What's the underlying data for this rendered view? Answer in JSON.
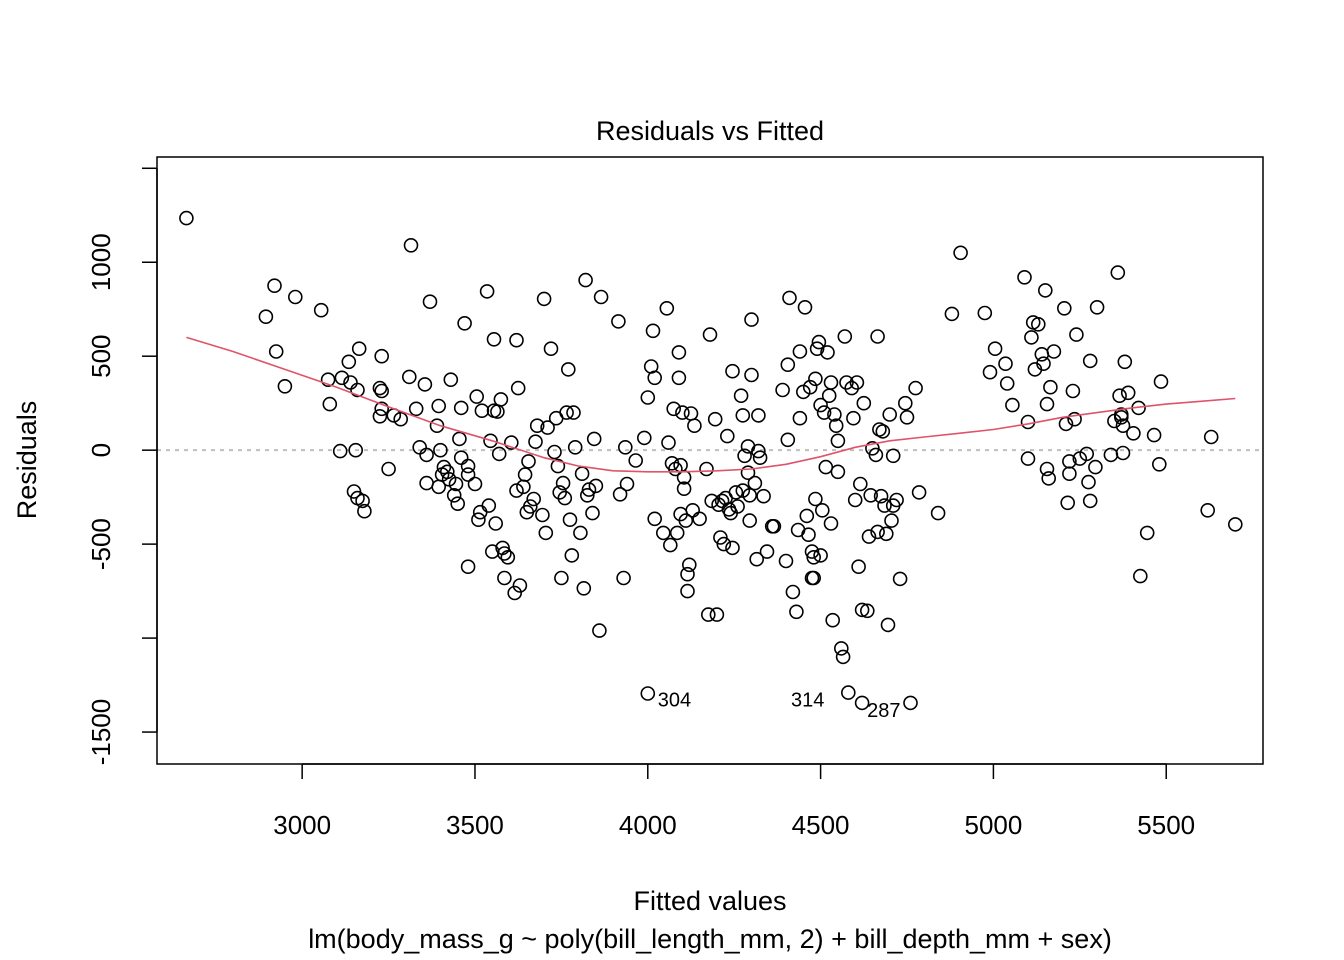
{
  "chart_data": {
    "type": "scatter",
    "title": "Residuals vs Fitted",
    "xlabel": "Fitted values",
    "subtitle": "lm(body_mass_g ~ poly(bill_length_mm, 2) + bill_depth_mm + sex)",
    "ylabel": "Residuals",
    "xlim": [
      2580,
      5780
    ],
    "ylim": [
      -1670,
      1560
    ],
    "x_ticks": [
      3000,
      3500,
      4000,
      4500,
      5000,
      5500
    ],
    "x_tick_labels": [
      "3000",
      "3500",
      "4000",
      "4500",
      "5000",
      "5500"
    ],
    "y_ticks": [
      -1500,
      -1000,
      -500,
      0,
      500,
      1000,
      1500
    ],
    "y_tick_labels": [
      "-1500",
      "",
      "-500",
      "0",
      "500",
      "1000",
      ""
    ],
    "reference_line": 0,
    "colors": {
      "points": "#000000",
      "smooth": "#DF536B",
      "reference": "#BEBEBE"
    },
    "points": [
      [
        2665,
        1235
      ],
      [
        2895,
        710
      ],
      [
        2920,
        875
      ],
      [
        2925,
        525
      ],
      [
        2950,
        340
      ],
      [
        2980,
        815
      ],
      [
        3055,
        745
      ],
      [
        3075,
        375
      ],
      [
        3080,
        245
      ],
      [
        3110,
        -5
      ],
      [
        3115,
        385
      ],
      [
        3135,
        470
      ],
      [
        3140,
        360
      ],
      [
        3150,
        -220
      ],
      [
        3155,
        0
      ],
      [
        3160,
        320
      ],
      [
        3160,
        -255
      ],
      [
        3165,
        540
      ],
      [
        3175,
        -270
      ],
      [
        3180,
        -325
      ],
      [
        3225,
        330
      ],
      [
        3225,
        180
      ],
      [
        3230,
        220
      ],
      [
        3230,
        500
      ],
      [
        3230,
        315
      ],
      [
        3250,
        -100
      ],
      [
        3265,
        185
      ],
      [
        3285,
        165
      ],
      [
        3310,
        390
      ],
      [
        3315,
        1090
      ],
      [
        3330,
        220
      ],
      [
        3340,
        15
      ],
      [
        3355,
        350
      ],
      [
        3360,
        -25
      ],
      [
        3360,
        -175
      ],
      [
        3370,
        790
      ],
      [
        3390,
        130
      ],
      [
        3395,
        235
      ],
      [
        3395,
        -195
      ],
      [
        3400,
        0
      ],
      [
        3405,
        -130
      ],
      [
        3410,
        -90
      ],
      [
        3420,
        -115
      ],
      [
        3425,
        -155
      ],
      [
        3430,
        375
      ],
      [
        3440,
        -240
      ],
      [
        3445,
        -180
      ],
      [
        3450,
        -285
      ],
      [
        3455,
        60
      ],
      [
        3460,
        225
      ],
      [
        3460,
        -40
      ],
      [
        3470,
        675
      ],
      [
        3480,
        -85
      ],
      [
        3480,
        -620
      ],
      [
        3480,
        -130
      ],
      [
        3500,
        -180
      ],
      [
        3505,
        285
      ],
      [
        3510,
        -370
      ],
      [
        3515,
        -330
      ],
      [
        3520,
        210
      ],
      [
        3535,
        845
      ],
      [
        3540,
        -295
      ],
      [
        3545,
        50
      ],
      [
        3550,
        -540
      ],
      [
        3555,
        590
      ],
      [
        3555,
        210
      ],
      [
        3560,
        -390
      ],
      [
        3565,
        205
      ],
      [
        3570,
        -20
      ],
      [
        3575,
        270
      ],
      [
        3580,
        -520
      ],
      [
        3585,
        -680
      ],
      [
        3585,
        -550
      ],
      [
        3595,
        -570
      ],
      [
        3605,
        40
      ],
      [
        3615,
        -760
      ],
      [
        3620,
        585
      ],
      [
        3620,
        -215
      ],
      [
        3625,
        330
      ],
      [
        3630,
        -720
      ],
      [
        3640,
        -195
      ],
      [
        3645,
        -130
      ],
      [
        3650,
        -330
      ],
      [
        3655,
        -60
      ],
      [
        3660,
        -300
      ],
      [
        3670,
        -260
      ],
      [
        3675,
        45
      ],
      [
        3680,
        130
      ],
      [
        3695,
        -345
      ],
      [
        3700,
        805
      ],
      [
        3705,
        -440
      ],
      [
        3710,
        120
      ],
      [
        3720,
        540
      ],
      [
        3730,
        -10
      ],
      [
        3735,
        170
      ],
      [
        3740,
        -85
      ],
      [
        3745,
        -225
      ],
      [
        3750,
        -680
      ],
      [
        3755,
        -175
      ],
      [
        3760,
        -255
      ],
      [
        3765,
        200
      ],
      [
        3770,
        430
      ],
      [
        3775,
        -370
      ],
      [
        3780,
        -560
      ],
      [
        3785,
        200
      ],
      [
        3790,
        15
      ],
      [
        3805,
        -440
      ],
      [
        3810,
        -125
      ],
      [
        3815,
        -735
      ],
      [
        3820,
        905
      ],
      [
        3825,
        -240
      ],
      [
        3830,
        -210
      ],
      [
        3840,
        -335
      ],
      [
        3845,
        60
      ],
      [
        3850,
        -190
      ],
      [
        3860,
        -960
      ],
      [
        3865,
        815
      ],
      [
        3915,
        685
      ],
      [
        3920,
        -235
      ],
      [
        3930,
        -680
      ],
      [
        3935,
        15
      ],
      [
        3940,
        -180
      ],
      [
        3965,
        -55
      ],
      [
        3990,
        65
      ],
      [
        4000,
        280
      ],
      [
        4000,
        -1295
      ],
      [
        4010,
        445
      ],
      [
        4015,
        635
      ],
      [
        4020,
        -365
      ],
      [
        4020,
        385
      ],
      [
        4045,
        -440
      ],
      [
        4055,
        755
      ],
      [
        4060,
        40
      ],
      [
        4065,
        -505
      ],
      [
        4070,
        -70
      ],
      [
        4075,
        220
      ],
      [
        4080,
        -100
      ],
      [
        4085,
        -440
      ],
      [
        4090,
        520
      ],
      [
        4090,
        385
      ],
      [
        4095,
        -340
      ],
      [
        4095,
        -80
      ],
      [
        4100,
        200
      ],
      [
        4105,
        -145
      ],
      [
        4105,
        -205
      ],
      [
        4110,
        -375
      ],
      [
        4115,
        -750
      ],
      [
        4115,
        -660
      ],
      [
        4120,
        -610
      ],
      [
        4125,
        195
      ],
      [
        4130,
        -320
      ],
      [
        4135,
        130
      ],
      [
        4150,
        -365
      ],
      [
        4170,
        -100
      ],
      [
        4175,
        -875
      ],
      [
        4180,
        615
      ],
      [
        4185,
        -270
      ],
      [
        4195,
        165
      ],
      [
        4200,
        -875
      ],
      [
        4205,
        -290
      ],
      [
        4210,
        -465
      ],
      [
        4215,
        -270
      ],
      [
        4220,
        -500
      ],
      [
        4225,
        -255
      ],
      [
        4230,
        75
      ],
      [
        4235,
        -315
      ],
      [
        4240,
        -335
      ],
      [
        4245,
        420
      ],
      [
        4245,
        -520
      ],
      [
        4255,
        -225
      ],
      [
        4260,
        -300
      ],
      [
        4270,
        290
      ],
      [
        4275,
        185
      ],
      [
        4275,
        -215
      ],
      [
        4280,
        -30
      ],
      [
        4290,
        20
      ],
      [
        4290,
        -120
      ],
      [
        4295,
        -375
      ],
      [
        4295,
        -240
      ],
      [
        4300,
        695
      ],
      [
        4300,
        400
      ],
      [
        4310,
        -175
      ],
      [
        4315,
        -580
      ],
      [
        4320,
        185
      ],
      [
        4320,
        -5
      ],
      [
        4325,
        -40
      ],
      [
        4335,
        -245
      ],
      [
        4345,
        -540
      ],
      [
        4360,
        -405
      ],
      [
        4365,
        -405
      ],
      [
        4390,
        320
      ],
      [
        4400,
        -590
      ],
      [
        4405,
        455
      ],
      [
        4405,
        55
      ],
      [
        4410,
        810
      ],
      [
        4420,
        -755
      ],
      [
        4430,
        -860
      ],
      [
        4435,
        -425
      ],
      [
        4440,
        525
      ],
      [
        4440,
        170
      ],
      [
        4450,
        310
      ],
      [
        4455,
        760
      ],
      [
        4460,
        -350
      ],
      [
        4465,
        -450
      ],
      [
        4470,
        335
      ],
      [
        4475,
        -680
      ],
      [
        4475,
        -540
      ],
      [
        4480,
        -570
      ],
      [
        4480,
        -680
      ],
      [
        4485,
        -260
      ],
      [
        4485,
        380
      ],
      [
        4490,
        540
      ],
      [
        4495,
        575
      ],
      [
        4500,
        240
      ],
      [
        4500,
        -560
      ],
      [
        4505,
        -320
      ],
      [
        4510,
        200
      ],
      [
        4515,
        -90
      ],
      [
        4520,
        520
      ],
      [
        4525,
        290
      ],
      [
        4530,
        -390
      ],
      [
        4530,
        360
      ],
      [
        4535,
        -905
      ],
      [
        4540,
        190
      ],
      [
        4545,
        130
      ],
      [
        4550,
        -115
      ],
      [
        4550,
        50
      ],
      [
        4560,
        -1055
      ],
      [
        4565,
        -1100
      ],
      [
        4570,
        605
      ],
      [
        4575,
        360
      ],
      [
        4580,
        -1290
      ],
      [
        4590,
        330
      ],
      [
        4595,
        170
      ],
      [
        4600,
        -265
      ],
      [
        4605,
        360
      ],
      [
        4610,
        -620
      ],
      [
        4615,
        -180
      ],
      [
        4620,
        -850
      ],
      [
        4625,
        250
      ],
      [
        4635,
        -855
      ],
      [
        4640,
        -460
      ],
      [
        4645,
        -240
      ],
      [
        4650,
        10
      ],
      [
        4660,
        -25
      ],
      [
        4665,
        605
      ],
      [
        4665,
        -435
      ],
      [
        4670,
        110
      ],
      [
        4675,
        -245
      ],
      [
        4680,
        100
      ],
      [
        4685,
        -295
      ],
      [
        4690,
        -445
      ],
      [
        4695,
        -930
      ],
      [
        4700,
        190
      ],
      [
        4705,
        -375
      ],
      [
        4710,
        -295
      ],
      [
        4710,
        -30
      ],
      [
        4720,
        -265
      ],
      [
        4730,
        -685
      ],
      [
        4745,
        250
      ],
      [
        4750,
        175
      ],
      [
        4760,
        -1345
      ],
      [
        4775,
        330
      ],
      [
        4785,
        -225
      ],
      [
        4840,
        -335
      ],
      [
        4880,
        725
      ],
      [
        4905,
        1050
      ],
      [
        4975,
        730
      ],
      [
        4990,
        415
      ],
      [
        5005,
        540
      ],
      [
        5035,
        460
      ],
      [
        5040,
        355
      ],
      [
        5055,
        240
      ],
      [
        5090,
        920
      ],
      [
        5100,
        150
      ],
      [
        5100,
        -45
      ],
      [
        5110,
        600
      ],
      [
        5115,
        680
      ],
      [
        5120,
        430
      ],
      [
        5130,
        670
      ],
      [
        5140,
        510
      ],
      [
        5145,
        460
      ],
      [
        5150,
        850
      ],
      [
        5155,
        -100
      ],
      [
        5155,
        245
      ],
      [
        5160,
        -150
      ],
      [
        5165,
        335
      ],
      [
        5175,
        525
      ],
      [
        5205,
        755
      ],
      [
        5210,
        140
      ],
      [
        5215,
        -280
      ],
      [
        5220,
        -60
      ],
      [
        5220,
        -125
      ],
      [
        5230,
        315
      ],
      [
        5235,
        165
      ],
      [
        5240,
        615
      ],
      [
        5250,
        -45
      ],
      [
        5270,
        -20
      ],
      [
        5275,
        -170
      ],
      [
        5280,
        -270
      ],
      [
        5280,
        475
      ],
      [
        5295,
        -90
      ],
      [
        5300,
        760
      ],
      [
        5340,
        -25
      ],
      [
        5350,
        155
      ],
      [
        5360,
        945
      ],
      [
        5365,
        290
      ],
      [
        5370,
        190
      ],
      [
        5370,
        175
      ],
      [
        5375,
        -15
      ],
      [
        5375,
        130
      ],
      [
        5380,
        470
      ],
      [
        5390,
        305
      ],
      [
        5405,
        90
      ],
      [
        5420,
        225
      ],
      [
        5425,
        -670
      ],
      [
        5445,
        -440
      ],
      [
        5465,
        80
      ],
      [
        5480,
        -75
      ],
      [
        5485,
        365
      ],
      [
        5620,
        -320
      ],
      [
        5630,
        70
      ],
      [
        5700,
        -395
      ],
      [
        4620,
        -1345
      ]
    ],
    "smooth": [
      [
        2665,
        600
      ],
      [
        2800,
        525
      ],
      [
        2950,
        430
      ],
      [
        3100,
        335
      ],
      [
        3250,
        230
      ],
      [
        3400,
        130
      ],
      [
        3550,
        50
      ],
      [
        3700,
        -40
      ],
      [
        3800,
        -85
      ],
      [
        3900,
        -110
      ],
      [
        4000,
        -115
      ],
      [
        4100,
        -115
      ],
      [
        4200,
        -110
      ],
      [
        4300,
        -100
      ],
      [
        4400,
        -75
      ],
      [
        4500,
        -35
      ],
      [
        4600,
        15
      ],
      [
        4700,
        50
      ],
      [
        4800,
        70
      ],
      [
        4900,
        90
      ],
      [
        5000,
        110
      ],
      [
        5100,
        140
      ],
      [
        5200,
        175
      ],
      [
        5300,
        200
      ],
      [
        5400,
        225
      ],
      [
        5500,
        245
      ],
      [
        5600,
        260
      ],
      [
        5700,
        275
      ]
    ],
    "annotations": [
      {
        "label": "304",
        "x": 4000,
        "y": -1290,
        "side": "right"
      },
      {
        "label": "314",
        "x": 4540,
        "y": -1290,
        "side": "left"
      },
      {
        "label": "287",
        "x": 4760,
        "y": -1345,
        "side": "left"
      }
    ]
  }
}
